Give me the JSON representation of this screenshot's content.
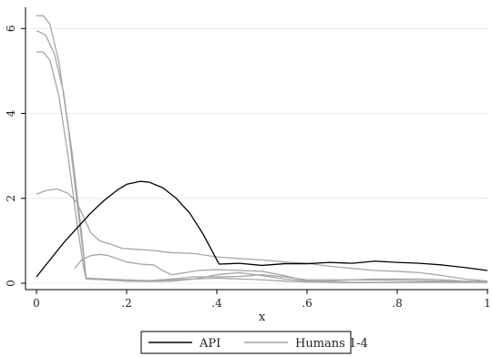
{
  "chart_data": {
    "type": "line",
    "title": "",
    "xlabel": "x",
    "ylabel": "",
    "xlim": [
      0,
      1
    ],
    "ylim": [
      0,
      6.5
    ],
    "xticks": [
      {
        "v": 0,
        "label": "0"
      },
      {
        "v": 0.2,
        "label": ".2"
      },
      {
        "v": 0.4,
        "label": ".4"
      },
      {
        "v": 0.6,
        "label": ".6"
      },
      {
        "v": 0.8,
        "label": ".8"
      },
      {
        "v": 1,
        "label": "1"
      }
    ],
    "yticks": [
      {
        "v": 0,
        "label": "0"
      },
      {
        "v": 2,
        "label": "2"
      },
      {
        "v": 4,
        "label": "4"
      },
      {
        "v": 6,
        "label": "6"
      }
    ],
    "grid": true,
    "legend_position": "bottom",
    "legend": [
      {
        "label": "API",
        "color": "#000000"
      },
      {
        "label": "Humans 1-4",
        "color": "#a6a6a6"
      }
    ],
    "series": [
      {
        "color": "#000000",
        "points": [
          [
            0,
            0.15
          ],
          [
            0.03,
            0.55
          ],
          [
            0.06,
            0.95
          ],
          [
            0.09,
            1.3
          ],
          [
            0.12,
            1.65
          ],
          [
            0.15,
            1.95
          ],
          [
            0.18,
            2.2
          ],
          [
            0.2,
            2.33
          ],
          [
            0.23,
            2.4
          ],
          [
            0.25,
            2.38
          ],
          [
            0.28,
            2.25
          ],
          [
            0.31,
            2.0
          ],
          [
            0.34,
            1.65
          ],
          [
            0.37,
            1.15
          ],
          [
            0.39,
            0.75
          ],
          [
            0.405,
            0.45
          ],
          [
            0.45,
            0.47
          ],
          [
            0.5,
            0.42
          ],
          [
            0.55,
            0.46
          ],
          [
            0.6,
            0.46
          ],
          [
            0.65,
            0.49
          ],
          [
            0.7,
            0.47
          ],
          [
            0.75,
            0.52
          ],
          [
            0.8,
            0.49
          ],
          [
            0.85,
            0.47
          ],
          [
            0.9,
            0.43
          ],
          [
            0.95,
            0.37
          ],
          [
            1.0,
            0.3
          ]
        ]
      },
      {
        "color": "#a6a6a6",
        "points": [
          [
            0,
            6.3
          ],
          [
            0.015,
            6.3
          ],
          [
            0.03,
            6.1
          ],
          [
            0.05,
            5.2
          ],
          [
            0.07,
            3.7
          ],
          [
            0.09,
            1.9
          ],
          [
            0.105,
            0.6
          ],
          [
            0.11,
            0.12
          ],
          [
            0.15,
            0.1
          ],
          [
            0.2,
            0.05
          ],
          [
            0.25,
            0.04
          ],
          [
            0.3,
            0.05
          ],
          [
            0.35,
            0.1
          ],
          [
            0.4,
            0.2
          ],
          [
            0.45,
            0.25
          ],
          [
            0.5,
            0.18
          ],
          [
            0.55,
            0.1
          ],
          [
            0.6,
            0.05
          ],
          [
            0.65,
            0.02
          ],
          [
            0.7,
            0.01
          ],
          [
            0.8,
            0.02
          ],
          [
            0.9,
            0.02
          ],
          [
            1.0,
            0.02
          ]
        ]
      },
      {
        "color": "#a6a6a6",
        "points": [
          [
            0,
            5.95
          ],
          [
            0.02,
            5.85
          ],
          [
            0.04,
            5.4
          ],
          [
            0.06,
            4.5
          ],
          [
            0.08,
            3.0
          ],
          [
            0.1,
            1.2
          ],
          [
            0.11,
            0.12
          ],
          [
            0.15,
            0.1
          ],
          [
            0.2,
            0.08
          ],
          [
            0.25,
            0.06
          ],
          [
            0.3,
            0.1
          ],
          [
            0.35,
            0.15
          ],
          [
            0.4,
            0.15
          ],
          [
            0.45,
            0.16
          ],
          [
            0.5,
            0.2
          ],
          [
            0.55,
            0.15
          ],
          [
            0.6,
            0.08
          ],
          [
            0.7,
            0.08
          ],
          [
            0.8,
            0.07
          ],
          [
            0.9,
            0.05
          ],
          [
            1.0,
            0.02
          ]
        ]
      },
      {
        "color": "#a6a6a6",
        "points": [
          [
            0,
            5.45
          ],
          [
            0.015,
            5.45
          ],
          [
            0.03,
            5.25
          ],
          [
            0.05,
            4.4
          ],
          [
            0.07,
            3.0
          ],
          [
            0.09,
            1.4
          ],
          [
            0.105,
            0.35
          ],
          [
            0.11,
            0.1
          ],
          [
            0.15,
            0.08
          ],
          [
            0.2,
            0.05
          ],
          [
            0.25,
            0.05
          ],
          [
            0.3,
            0.08
          ],
          [
            0.35,
            0.1
          ],
          [
            0.4,
            0.12
          ],
          [
            0.5,
            0.08
          ],
          [
            0.55,
            0.05
          ],
          [
            0.6,
            0.03
          ],
          [
            0.7,
            0.02
          ],
          [
            0.8,
            0.02
          ],
          [
            0.9,
            0.03
          ],
          [
            1.0,
            0.05
          ]
        ]
      },
      {
        "color": "#a6a6a6",
        "points": [
          [
            0,
            2.1
          ],
          [
            0.02,
            2.18
          ],
          [
            0.045,
            2.22
          ],
          [
            0.07,
            2.12
          ],
          [
            0.09,
            1.9
          ],
          [
            0.105,
            1.55
          ],
          [
            0.12,
            1.2
          ],
          [
            0.14,
            1.0
          ],
          [
            0.17,
            0.9
          ],
          [
            0.19,
            0.82
          ],
          [
            0.22,
            0.8
          ],
          [
            0.25,
            0.78
          ],
          [
            0.3,
            0.72
          ],
          [
            0.35,
            0.7
          ],
          [
            0.4,
            0.62
          ],
          [
            0.45,
            0.58
          ],
          [
            0.5,
            0.55
          ],
          [
            0.55,
            0.5
          ],
          [
            0.6,
            0.47
          ],
          [
            0.65,
            0.4
          ],
          [
            0.7,
            0.35
          ],
          [
            0.75,
            0.3
          ],
          [
            0.8,
            0.28
          ],
          [
            0.85,
            0.25
          ],
          [
            0.9,
            0.18
          ],
          [
            0.95,
            0.1
          ],
          [
            1.0,
            0.05
          ]
        ]
      },
      {
        "color": "#a6a6a6",
        "points": [
          [
            0.085,
            0.35
          ],
          [
            0.1,
            0.55
          ],
          [
            0.12,
            0.65
          ],
          [
            0.14,
            0.68
          ],
          [
            0.16,
            0.65
          ],
          [
            0.2,
            0.5
          ],
          [
            0.23,
            0.45
          ],
          [
            0.26,
            0.43
          ],
          [
            0.28,
            0.3
          ],
          [
            0.3,
            0.2
          ],
          [
            0.33,
            0.25
          ],
          [
            0.36,
            0.3
          ],
          [
            0.4,
            0.32
          ],
          [
            0.45,
            0.3
          ],
          [
            0.5,
            0.28
          ],
          [
            0.55,
            0.18
          ],
          [
            0.6,
            0.05
          ],
          [
            0.65,
            0.05
          ],
          [
            0.7,
            0.08
          ],
          [
            0.75,
            0.1
          ],
          [
            0.8,
            0.1
          ],
          [
            0.85,
            0.1
          ],
          [
            0.9,
            0.08
          ],
          [
            0.95,
            0.05
          ],
          [
            1.0,
            0.03
          ]
        ]
      }
    ]
  }
}
